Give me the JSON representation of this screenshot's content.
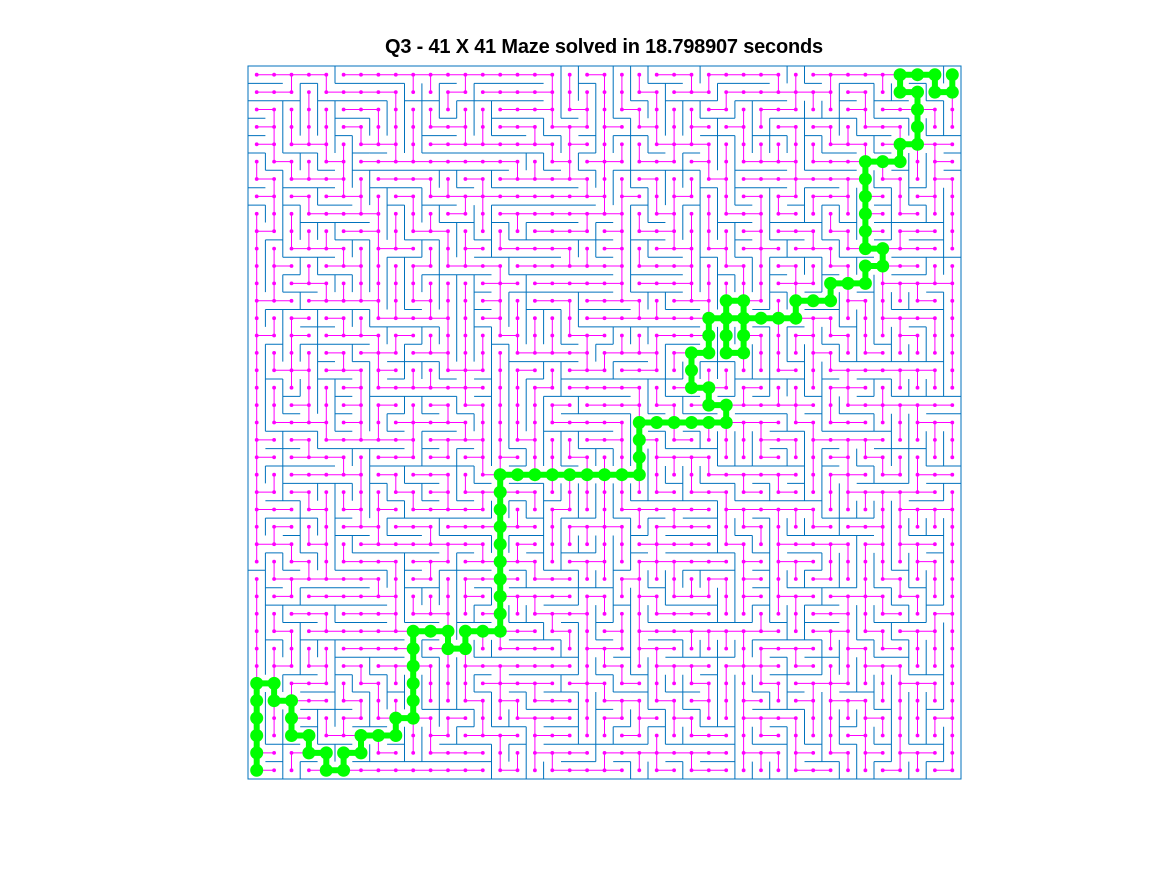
{
  "figure": {
    "title": "Q3 - 41 X 41 Maze solved in 18.798907 seconds"
  },
  "maze": {
    "rows": 41,
    "cols": 41,
    "seed": 731,
    "colors": {
      "walls": "#0072BD",
      "tree": "#FF00FF",
      "path": "#00FF00",
      "background": "#FFFFFF"
    },
    "start_cell": [
      0,
      0
    ],
    "goal_cell": [
      40,
      40
    ],
    "solution_path": [
      [
        0,
        0
      ],
      [
        0,
        1
      ],
      [
        0,
        2
      ],
      [
        0,
        3
      ],
      [
        0,
        4
      ],
      [
        0,
        5
      ],
      [
        1,
        5
      ],
      [
        1,
        4
      ],
      [
        2,
        4
      ],
      [
        2,
        3
      ],
      [
        2,
        2
      ],
      [
        3,
        2
      ],
      [
        3,
        1
      ],
      [
        4,
        1
      ],
      [
        4,
        0
      ],
      [
        5,
        0
      ],
      [
        5,
        1
      ],
      [
        6,
        1
      ],
      [
        6,
        2
      ],
      [
        7,
        2
      ],
      [
        8,
        2
      ],
      [
        8,
        3
      ],
      [
        9,
        3
      ],
      [
        9,
        4
      ],
      [
        9,
        5
      ],
      [
        9,
        6
      ],
      [
        9,
        7
      ],
      [
        9,
        8
      ],
      [
        10,
        8
      ],
      [
        11,
        8
      ],
      [
        11,
        7
      ],
      [
        12,
        7
      ],
      [
        12,
        8
      ],
      [
        13,
        8
      ],
      [
        14,
        8
      ],
      [
        14,
        9
      ],
      [
        14,
        10
      ],
      [
        14,
        11
      ],
      [
        14,
        12
      ],
      [
        14,
        13
      ],
      [
        14,
        14
      ],
      [
        14,
        15
      ],
      [
        14,
        16
      ],
      [
        14,
        17
      ],
      [
        15,
        17
      ],
      [
        16,
        17
      ],
      [
        17,
        17
      ],
      [
        18,
        17
      ],
      [
        19,
        17
      ],
      [
        20,
        17
      ],
      [
        21,
        17
      ],
      [
        22,
        17
      ],
      [
        22,
        18
      ],
      [
        22,
        19
      ],
      [
        22,
        20
      ],
      [
        23,
        20
      ],
      [
        24,
        20
      ],
      [
        25,
        20
      ],
      [
        26,
        20
      ],
      [
        27,
        20
      ],
      [
        27,
        21
      ],
      [
        26,
        21
      ],
      [
        26,
        22
      ],
      [
        25,
        22
      ],
      [
        25,
        23
      ],
      [
        25,
        24
      ],
      [
        26,
        24
      ],
      [
        26,
        25
      ],
      [
        26,
        26
      ],
      [
        27,
        26
      ],
      [
        27,
        27
      ],
      [
        28,
        27
      ],
      [
        28,
        26
      ],
      [
        28,
        25
      ],
      [
        28,
        24
      ],
      [
        27,
        24
      ],
      [
        27,
        25
      ],
      [
        27,
        26
      ],
      [
        28,
        26
      ],
      [
        29,
        26
      ],
      [
        30,
        26
      ],
      [
        31,
        26
      ],
      [
        31,
        27
      ],
      [
        32,
        27
      ],
      [
        33,
        27
      ],
      [
        33,
        28
      ],
      [
        34,
        28
      ],
      [
        35,
        28
      ],
      [
        35,
        29
      ],
      [
        36,
        29
      ],
      [
        36,
        30
      ],
      [
        35,
        30
      ],
      [
        35,
        31
      ],
      [
        35,
        32
      ],
      [
        35,
        33
      ],
      [
        35,
        34
      ],
      [
        35,
        35
      ],
      [
        36,
        35
      ],
      [
        37,
        35
      ],
      [
        37,
        36
      ],
      [
        38,
        36
      ],
      [
        38,
        37
      ],
      [
        38,
        38
      ],
      [
        38,
        39
      ],
      [
        37,
        39
      ],
      [
        37,
        40
      ],
      [
        38,
        40
      ],
      [
        39,
        40
      ],
      [
        39,
        39
      ],
      [
        40,
        39
      ],
      [
        40,
        40
      ]
    ]
  }
}
